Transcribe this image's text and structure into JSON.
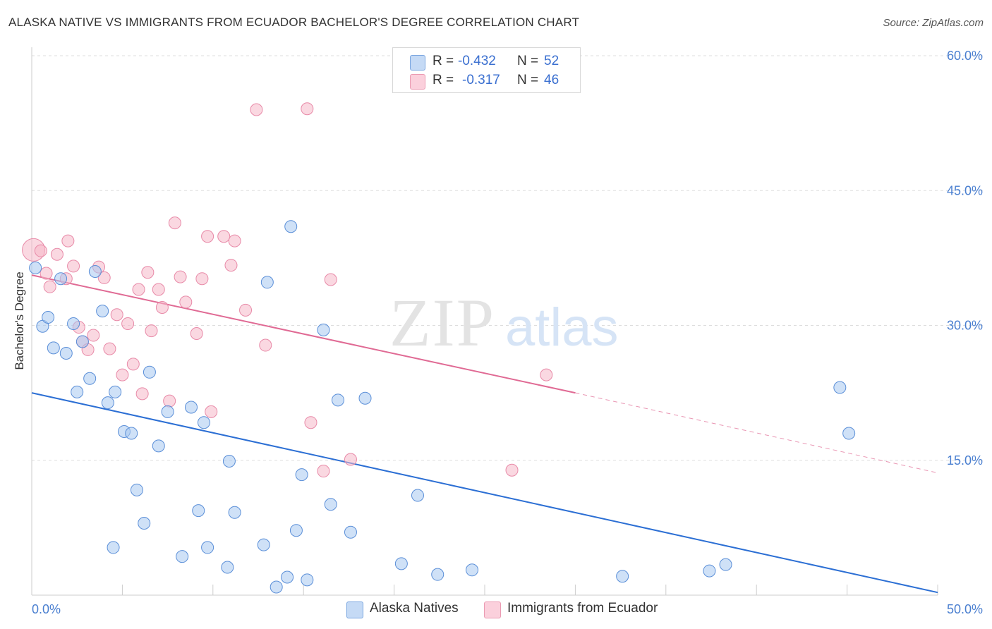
{
  "title": "ALASKA NATIVE VS IMMIGRANTS FROM ECUADOR BACHELOR'S DEGREE CORRELATION CHART",
  "source": "Source: ZipAtlas.com",
  "watermark": {
    "zip": "ZIP",
    "atlas": "atlas"
  },
  "legend": {
    "rows": [
      {
        "r_label": "R =",
        "r_value": "-0.432",
        "n_label": "N =",
        "n_value": "52",
        "color": "#a8c8f0"
      },
      {
        "r_label": "R =",
        "r_value": "-0.317",
        "n_label": "N =",
        "n_value": "46",
        "color": "#f5b8c8"
      }
    ]
  },
  "bottom_legend": {
    "series_a": "Alaska Natives",
    "series_b": "Immigrants from Ecuador"
  },
  "colors": {
    "blue_fill": "#a8c8f0",
    "blue_stroke": "#5b8fd8",
    "blue_line": "#2c6fd4",
    "pink_fill": "#f5b8c8",
    "pink_stroke": "#e88aa8",
    "pink_line": "#e06a94",
    "grid": "#dddddd",
    "tick_text": "#4a7fd0"
  },
  "chart_data": {
    "type": "scatter",
    "title": "ALASKA NATIVE VS IMMIGRANTS FROM ECUADOR BACHELOR'S DEGREE CORRELATION CHART",
    "xlabel": "",
    "ylabel": "Bachelor's Degree",
    "xlim": [
      0,
      50
    ],
    "ylim": [
      0,
      60
    ],
    "x_ticks": [
      "0.0%",
      "50.0%"
    ],
    "y_ticks": [
      {
        "value": 60,
        "label": "60.0%"
      },
      {
        "value": 45,
        "label": "45.0%"
      },
      {
        "value": 30,
        "label": "30.0%"
      },
      {
        "value": 15,
        "label": "15.0%"
      }
    ],
    "grid": true,
    "legend_position": "top-center",
    "series": [
      {
        "name": "Alaska Natives",
        "color": "#a8c8f0",
        "r": -0.432,
        "n": 52,
        "trend": {
          "x0": 0,
          "y0": 22.5,
          "x1": 50,
          "y1": 0.3
        },
        "points": [
          [
            0.2,
            36.4
          ],
          [
            0.6,
            29.9
          ],
          [
            0.9,
            30.9
          ],
          [
            1.2,
            27.5
          ],
          [
            1.6,
            35.2
          ],
          [
            1.9,
            26.9
          ],
          [
            2.3,
            30.2
          ],
          [
            2.5,
            22.6
          ],
          [
            2.8,
            28.2
          ],
          [
            3.2,
            24.1
          ],
          [
            3.5,
            36.0
          ],
          [
            3.9,
            31.6
          ],
          [
            4.2,
            21.4
          ],
          [
            4.6,
            22.6
          ],
          [
            5.1,
            18.2
          ],
          [
            5.5,
            18.0
          ],
          [
            5.8,
            11.7
          ],
          [
            6.2,
            8.0
          ],
          [
            6.5,
            24.8
          ],
          [
            7.0,
            16.6
          ],
          [
            7.5,
            20.4
          ],
          [
            8.3,
            4.3
          ],
          [
            8.8,
            20.9
          ],
          [
            9.2,
            9.4
          ],
          [
            9.5,
            19.2
          ],
          [
            9.7,
            5.3
          ],
          [
            10.8,
            3.1
          ],
          [
            10.9,
            14.9
          ],
          [
            11.2,
            9.2
          ],
          [
            12.8,
            5.6
          ],
          [
            13.0,
            34.8
          ],
          [
            13.5,
            0.9
          ],
          [
            14.1,
            2.0
          ],
          [
            14.3,
            41.0
          ],
          [
            14.6,
            7.2
          ],
          [
            14.9,
            13.4
          ],
          [
            15.2,
            1.7
          ],
          [
            16.1,
            29.5
          ],
          [
            16.5,
            10.1
          ],
          [
            16.9,
            21.7
          ],
          [
            17.6,
            7.0
          ],
          [
            18.4,
            21.9
          ],
          [
            20.4,
            3.5
          ],
          [
            21.3,
            11.1
          ],
          [
            22.4,
            2.3
          ],
          [
            24.3,
            2.8
          ],
          [
            32.6,
            2.1
          ],
          [
            37.4,
            2.7
          ],
          [
            38.3,
            3.4
          ],
          [
            44.6,
            23.1
          ],
          [
            45.1,
            18.0
          ],
          [
            4.5,
            5.3
          ]
        ]
      },
      {
        "name": "Immigrants from Ecuador",
        "color": "#f5b8c8",
        "r": -0.317,
        "n": 46,
        "trend": {
          "x0": 0,
          "y0": 35.6,
          "x1": 30,
          "y1": 22.5,
          "dashed_to_x": 50,
          "dashed_to_y": 13.6
        },
        "points": [
          [
            0.1,
            38.4
          ],
          [
            0.5,
            38.3
          ],
          [
            0.8,
            35.8
          ],
          [
            1.0,
            34.3
          ],
          [
            1.4,
            37.9
          ],
          [
            1.9,
            35.2
          ],
          [
            2.0,
            39.4
          ],
          [
            2.3,
            36.6
          ],
          [
            2.6,
            29.8
          ],
          [
            2.8,
            28.2
          ],
          [
            3.1,
            27.3
          ],
          [
            3.4,
            28.9
          ],
          [
            3.7,
            36.5
          ],
          [
            4.0,
            35.3
          ],
          [
            4.3,
            27.4
          ],
          [
            4.7,
            31.2
          ],
          [
            5.0,
            24.5
          ],
          [
            5.3,
            30.2
          ],
          [
            5.6,
            25.7
          ],
          [
            5.9,
            34.0
          ],
          [
            6.1,
            22.4
          ],
          [
            6.4,
            35.9
          ],
          [
            6.6,
            29.4
          ],
          [
            7.0,
            34.0
          ],
          [
            7.2,
            32.0
          ],
          [
            7.6,
            21.6
          ],
          [
            7.9,
            41.4
          ],
          [
            8.2,
            35.4
          ],
          [
            8.5,
            32.6
          ],
          [
            9.1,
            29.1
          ],
          [
            9.4,
            35.2
          ],
          [
            9.7,
            39.9
          ],
          [
            9.9,
            20.4
          ],
          [
            10.6,
            39.9
          ],
          [
            11.0,
            36.7
          ],
          [
            11.2,
            39.4
          ],
          [
            11.8,
            31.7
          ],
          [
            12.4,
            54.0
          ],
          [
            12.9,
            27.8
          ],
          [
            15.2,
            54.1
          ],
          [
            15.4,
            19.2
          ],
          [
            16.1,
            13.8
          ],
          [
            16.5,
            35.1
          ],
          [
            17.6,
            15.1
          ],
          [
            26.5,
            13.9
          ],
          [
            28.4,
            24.5
          ]
        ]
      }
    ]
  }
}
